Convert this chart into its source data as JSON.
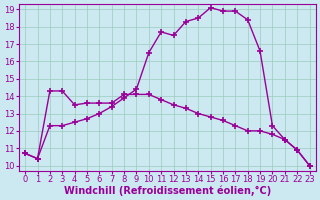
{
  "line1_x": [
    0,
    1,
    2,
    3,
    4,
    5,
    6,
    7,
    8,
    9,
    10,
    11,
    12,
    13,
    14,
    15,
    16,
    17,
    18,
    19,
    20,
    21,
    22,
    23
  ],
  "line1_y": [
    10.7,
    10.4,
    12.3,
    12.3,
    12.5,
    12.7,
    13.0,
    13.4,
    13.9,
    14.4,
    16.5,
    17.7,
    17.5,
    18.3,
    18.5,
    19.1,
    18.9,
    18.9,
    18.4,
    16.6,
    12.3,
    11.5,
    10.9,
    10.0
  ],
  "line2_x": [
    0,
    1,
    2,
    3,
    4,
    5,
    6,
    7,
    8,
    9,
    10,
    11,
    12,
    13,
    14,
    15,
    16,
    17,
    18,
    19,
    20,
    21,
    22,
    23
  ],
  "line2_y": [
    10.7,
    10.4,
    14.3,
    14.3,
    13.5,
    13.6,
    13.6,
    13.6,
    14.1,
    14.1,
    14.1,
    13.8,
    13.5,
    13.3,
    13.0,
    12.8,
    12.6,
    12.3,
    12.0,
    12.0,
    11.8,
    11.5,
    10.9,
    10.0
  ],
  "line_color": "#990099",
  "bg_color": "#cce8f0",
  "grid_color": "#99ccbb",
  "xlabel": "Windchill (Refroidissement éolien,°C)",
  "xlim": [
    -0.5,
    23.5
  ],
  "ylim": [
    9.7,
    19.3
  ],
  "xticks": [
    0,
    1,
    2,
    3,
    4,
    5,
    6,
    7,
    8,
    9,
    10,
    11,
    12,
    13,
    14,
    15,
    16,
    17,
    18,
    19,
    20,
    21,
    22,
    23
  ],
  "yticks": [
    10,
    11,
    12,
    13,
    14,
    15,
    16,
    17,
    18,
    19
  ],
  "marker": "+",
  "markersize": 5,
  "linewidth": 1.0,
  "xlabel_fontsize": 7,
  "tick_fontsize": 6
}
